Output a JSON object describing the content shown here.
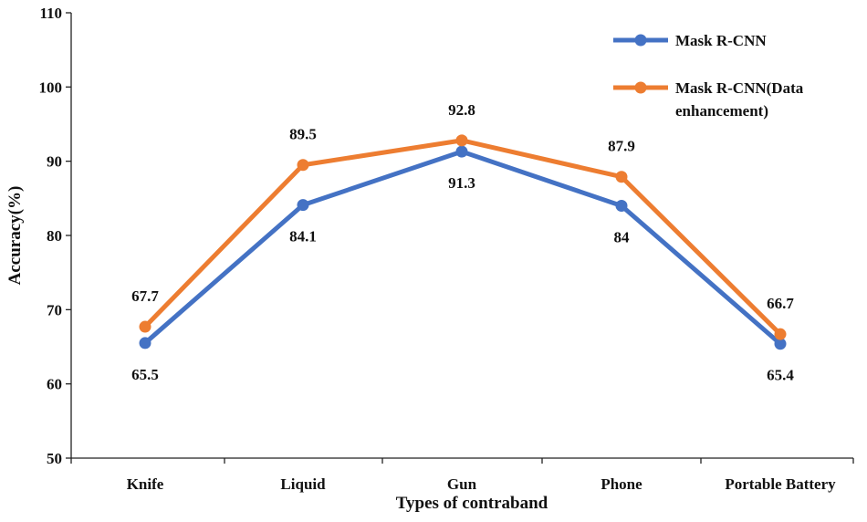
{
  "chart_data": {
    "type": "line",
    "categories": [
      "Knife",
      "Liquid",
      "Gun",
      "Phone",
      "Portable Battery"
    ],
    "series": [
      {
        "name": "Mask R-CNN",
        "values": [
          65.5,
          84.1,
          91.3,
          84,
          65.4
        ],
        "color": "#4472C4"
      },
      {
        "name": "Mask R-CNN(Data enhancement)",
        "values": [
          67.7,
          89.5,
          92.8,
          87.9,
          66.7
        ],
        "color": "#ED7D31"
      }
    ],
    "data_labels": {
      "Mask R-CNN": [
        "65.5",
        "84.1",
        "91.3",
        "84",
        "65.4"
      ],
      "Mask R-CNN(Data enhancement)": [
        "67.7",
        "89.5",
        "92.8",
        "87.9",
        "66.7"
      ]
    },
    "legend_lines": [
      [
        "Mask R-CNN"
      ],
      [
        "Mask R-CNN(Data",
        "enhancement)"
      ]
    ],
    "xlabel": "Types of contraband",
    "ylabel": "Accuracy(%)",
    "ylim": [
      50,
      110
    ],
    "yticks": [
      50,
      60,
      70,
      80,
      90,
      100,
      110
    ],
    "grid": false,
    "legend_position": "top-right"
  }
}
